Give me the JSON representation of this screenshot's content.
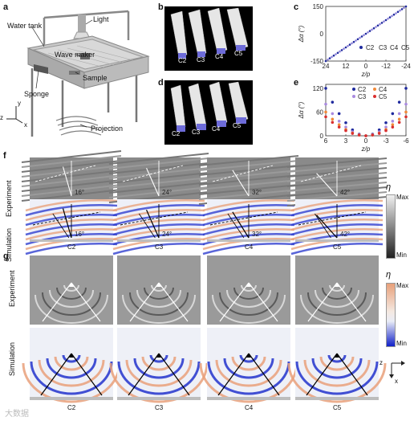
{
  "panels": {
    "a": "a",
    "b": "b",
    "c": "c",
    "d": "d",
    "e": "e",
    "f": "f",
    "g": "g"
  },
  "setup": {
    "light": "Light",
    "water_tank": "Water tank",
    "wave_maker": "Wave maker",
    "sample": "Sample",
    "sponge": "Sponge",
    "projection": "Projection",
    "axis_y": "y",
    "axis_z": "z",
    "axis_x": "x"
  },
  "structures_b": [
    "C2",
    "C3",
    "C4",
    "C5"
  ],
  "structures_d": [
    "C2",
    "C3",
    "C4",
    "C5"
  ],
  "chart_data": [
    {
      "panel": "c",
      "type": "line",
      "xlabel": "z/p",
      "ylabel": "Δα (°)",
      "xticks": [
        "24",
        "12",
        "0",
        "-12",
        "-24"
      ],
      "yticks": [
        "150",
        "0",
        "-150"
      ],
      "xlim": [
        24,
        -24
      ],
      "ylim": [
        -150,
        150
      ],
      "series": [
        {
          "name": "C2",
          "color": "#1f2a9e",
          "x": [
            24,
            -24
          ],
          "y": [
            -150,
            150
          ]
        },
        {
          "name": "C3",
          "color": "#8a7fd8"
        },
        {
          "name": "C4",
          "color": "#e58a3c"
        },
        {
          "name": "C5",
          "color": "#d92f2f"
        }
      ],
      "legend": [
        "C2",
        "C3",
        "C4",
        "C5"
      ]
    },
    {
      "panel": "e",
      "type": "scatter",
      "xlabel": "z/p",
      "ylabel": "Δα (°)",
      "xticks": [
        "6",
        "3",
        "0",
        "-3",
        "-6"
      ],
      "yticks": [
        "120",
        "60",
        "0"
      ],
      "xlim": [
        6,
        -6
      ],
      "ylim": [
        0,
        130
      ],
      "series": [
        {
          "name": "C2",
          "color": "#1f2a9e",
          "x": [
            6,
            5,
            4,
            3,
            2,
            1,
            0,
            -1,
            -2,
            -3,
            -4,
            -5,
            -6
          ],
          "y": [
            120,
            85,
            56,
            33,
            15,
            4,
            0,
            4,
            15,
            33,
            56,
            85,
            120
          ]
        },
        {
          "name": "C3",
          "color": "#a98ae0",
          "x": [
            6,
            5,
            4,
            3,
            2,
            1,
            0,
            -1,
            -2,
            -3,
            -4,
            -5,
            -6
          ],
          "y": [
            80,
            56,
            37,
            22,
            10,
            3,
            0,
            3,
            10,
            22,
            37,
            56,
            80
          ]
        },
        {
          "name": "C4",
          "color": "#f08a3a",
          "x": [
            6,
            5,
            4,
            3,
            2,
            1,
            0,
            -1,
            -2,
            -3,
            -4,
            -5,
            -6
          ],
          "y": [
            60,
            42,
            28,
            16,
            7,
            2,
            0,
            2,
            7,
            16,
            28,
            42,
            60
          ]
        },
        {
          "name": "C5",
          "color": "#d92f2f",
          "x": [
            6,
            5,
            4,
            3,
            2,
            1,
            0,
            -1,
            -2,
            -3,
            -4,
            -5,
            -6
          ],
          "y": [
            48,
            34,
            22,
            13,
            6,
            2,
            0,
            2,
            6,
            13,
            22,
            34,
            48
          ]
        }
      ],
      "legend": [
        "C2",
        "C4",
        "C3",
        "C5"
      ]
    }
  ],
  "row_f": {
    "exp_label": "Experiment",
    "sim_label": "Simulation",
    "angles": [
      "16°",
      "24°",
      "32°",
      "42°"
    ],
    "cols": [
      "C2",
      "C3",
      "C4",
      "C5"
    ]
  },
  "row_g": {
    "exp_label": "Experiment",
    "sim_label": "Simulation",
    "cols": [
      "C2",
      "C3",
      "C4",
      "C5"
    ]
  },
  "colorbar_f": {
    "symbol": "η",
    "max": "Max",
    "min": "Min"
  },
  "colorbar_g": {
    "symbol": "η",
    "max": "Max",
    "min": "Min"
  },
  "axes_g": {
    "z": "z",
    "x": "x"
  },
  "watermark": "大数据"
}
